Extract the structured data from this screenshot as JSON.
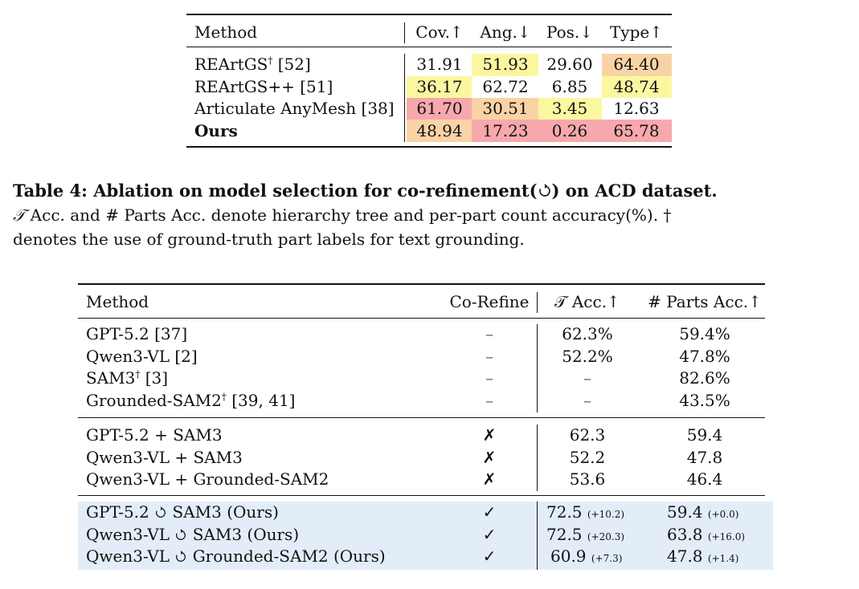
{
  "table3": {
    "headers": {
      "method": "Method",
      "cov": "Cov.↑",
      "ang": "Ang.↓",
      "pos": "Pos.↓",
      "type": "Type↑"
    },
    "rows": [
      {
        "method": "REArtGS",
        "dagger": "†",
        "cite": " [52]",
        "cov": "31.91",
        "ang": "51.93",
        "pos": "29.60",
        "type": "64.40"
      },
      {
        "method": "REArtGS++ [51]",
        "cov": "36.17",
        "ang": "62.72",
        "pos": "6.85",
        "type": "48.74"
      },
      {
        "method": "Articulate AnyMesh [38]",
        "cov": "61.70",
        "ang": "30.51",
        "pos": "3.45",
        "type": "12.63"
      },
      {
        "method": "Ours",
        "cov": "48.94",
        "ang": "17.23",
        "pos": "0.26",
        "type": "65.78"
      }
    ],
    "colors": {
      "yellow": "#fbf7a1",
      "orange": "#f9d3a5",
      "red": "#f7a8ad"
    }
  },
  "caption": {
    "title": "Table 4: Ablation on model selection for co-refinement(",
    "title_end": ") on ACD dataset.",
    "line1_t": "𝒯",
    "line1": " Acc. and # Parts Acc. denote hierarchy tree and per-part count accuracy(%). †",
    "line2": "denotes the use of ground-truth part labels for text grounding."
  },
  "table4": {
    "headers": {
      "method": "Method",
      "corefine": "Co-Refine",
      "tacc": "𝒯 Acc.↑",
      "parts": "# Parts Acc.↑"
    },
    "group1": [
      {
        "method": "GPT-5.2 [37]",
        "corefine": "–",
        "tacc": "62.3%",
        "parts": "59.4%"
      },
      {
        "method": "Qwen3-VL [2]",
        "corefine": "–",
        "tacc": "52.2%",
        "parts": "47.8%"
      },
      {
        "method": "SAM3",
        "dagger": "†",
        "cite": " [3]",
        "corefine": "–",
        "tacc": "–",
        "parts": "82.6%"
      },
      {
        "method": "Grounded-SAM2",
        "dagger": "†",
        "cite": " [39, 41]",
        "corefine": "–",
        "tacc": "–",
        "parts": "43.5%"
      }
    ],
    "group2": [
      {
        "method": "GPT-5.2 + SAM3",
        "corefine": "✗",
        "tacc": "62.3",
        "parts": "59.4"
      },
      {
        "method": "Qwen3-VL + SAM3",
        "corefine": "✗",
        "tacc": "52.2",
        "parts": "47.8"
      },
      {
        "method": "Qwen3-VL + Grounded-SAM2",
        "corefine": "✗",
        "tacc": "53.6",
        "parts": "46.4"
      }
    ],
    "group3": [
      {
        "m1": "GPT-5.2",
        "m2": "SAM3 (Ours)",
        "corefine": "✓",
        "tacc": "72.5",
        "tacc_d": "(+10.2)",
        "parts": "59.4",
        "parts_d": "(+0.0)"
      },
      {
        "m1": "Qwen3-VL",
        "m2": "SAM3 (Ours)",
        "corefine": "✓",
        "tacc": "72.5",
        "tacc_d": "(+20.3)",
        "parts": "63.8",
        "parts_d": "(+16.0)"
      },
      {
        "m1": "Qwen3-VL",
        "m2": "Grounded-SAM2 (Ours)",
        "corefine": "✓",
        "tacc": "60.9",
        "tacc_d": "(+7.3)",
        "parts": "47.8",
        "parts_d": "(+1.4)"
      }
    ],
    "highlight_color": "#e3edf8"
  }
}
